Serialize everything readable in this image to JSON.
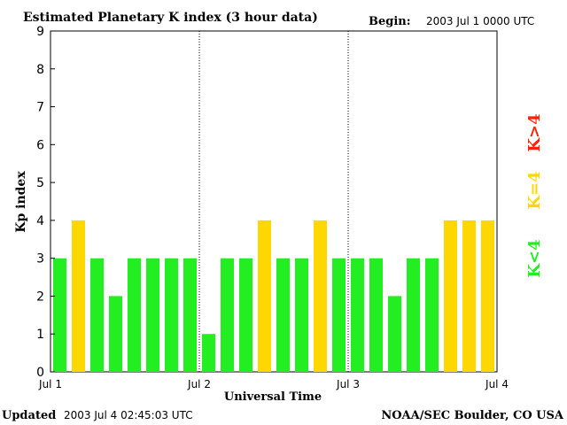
{
  "header": {
    "title": "Estimated Planetary K index (3 hour data)",
    "begin_label": "Begin:",
    "begin_value": "2003 Jul 1 0000 UTC"
  },
  "footer": {
    "updated_label": "Updated",
    "updated_value": "2003 Jul  4 02:45:03 UTC",
    "credit": "NOAA/SEC Boulder, CO USA"
  },
  "legend": {
    "gt4": "K>4",
    "eq4": "K=4",
    "lt4": "K<4"
  },
  "colors": {
    "lt4": "#22ee22",
    "eq4": "#ffd700",
    "gt4": "#ff2200",
    "axis": "#000000"
  },
  "chart_data": {
    "type": "bar",
    "title": "Estimated Planetary K index (3 hour data)",
    "xlabel": "Universal Time",
    "ylabel": "Kp index",
    "ylim": [
      0,
      9
    ],
    "yticks": [
      "0",
      "1",
      "2",
      "3",
      "4",
      "5",
      "6",
      "7",
      "8",
      "9"
    ],
    "xticks": [
      "Jul 1",
      "Jul 2",
      "Jul 3",
      "Jul 4"
    ],
    "day_separators": [
      "Jul 2",
      "Jul 3"
    ],
    "bars_per_day": 8,
    "values": [
      3,
      4,
      3,
      2,
      3,
      3,
      3,
      3,
      1,
      3,
      3,
      4,
      3,
      3,
      4,
      3,
      3,
      3,
      2,
      3,
      3,
      4,
      4,
      4
    ]
  }
}
